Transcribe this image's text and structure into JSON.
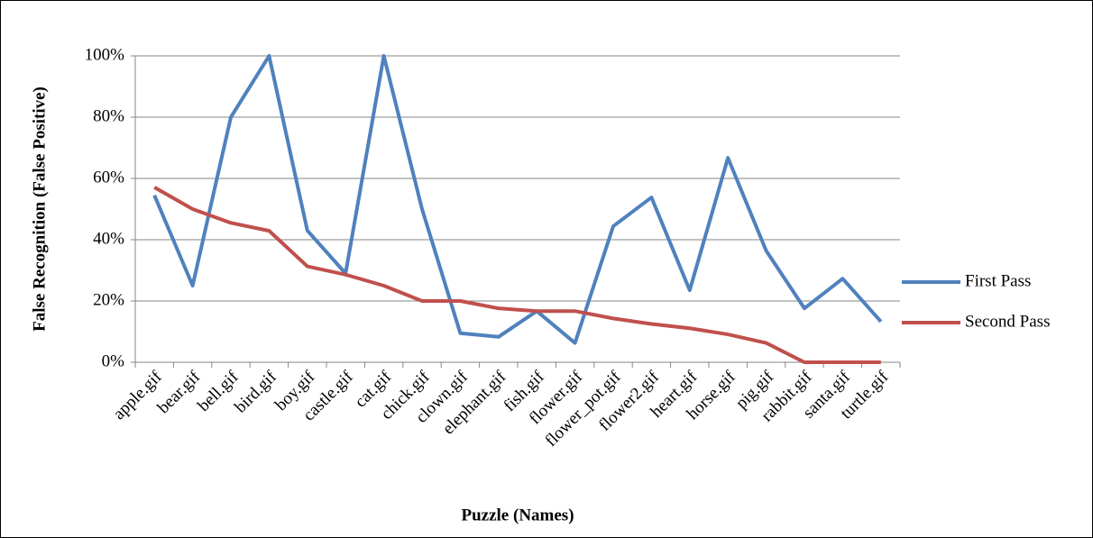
{
  "chart_data": {
    "type": "line",
    "y_label": "False Recognition (False Positive)",
    "x_label": "Puzzle (Names)",
    "categories": [
      "apple.gif",
      "bear.gif",
      "bell.gif",
      "bird.gif",
      "boy.gif",
      "castle.gif",
      "cat.gif",
      "chick.gif",
      "clown.gif",
      "elephant.gif",
      "fish.gif",
      "flower.gif",
      "flower_pot.gif",
      "flower2.gif",
      "heart.gif",
      "horse.gif",
      "pig.gif",
      "rabbit.gif",
      "santa.gif",
      "turtle.gif"
    ],
    "series": [
      {
        "name": "First Pass",
        "color": "#4f81bd",
        "values": [
          54.5,
          25,
          80,
          100,
          43,
          29,
          100,
          50,
          9.5,
          8.3,
          16.7,
          6.3,
          44.4,
          53.8,
          23.5,
          66.7,
          36.4,
          17.6,
          27.3,
          13.3
        ]
      },
      {
        "name": "Second Pass",
        "color": "#c0504d",
        "values": [
          57.1,
          50,
          45.5,
          42.9,
          31.3,
          28.6,
          25,
          20,
          20,
          17.6,
          16.7,
          16.7,
          14.3,
          12.5,
          11.1,
          9.1,
          6.3,
          0,
          0,
          0
        ]
      }
    ],
    "ylim": [
      0,
      100
    ],
    "yticks": [
      {
        "value": 0,
        "label": "0%"
      },
      {
        "value": 20,
        "label": "20%"
      },
      {
        "value": 40,
        "label": "40%"
      },
      {
        "value": 60,
        "label": "60%"
      },
      {
        "value": 80,
        "label": "80%"
      },
      {
        "value": 100,
        "label": "100%"
      }
    ],
    "grid": true,
    "legend": "right"
  }
}
